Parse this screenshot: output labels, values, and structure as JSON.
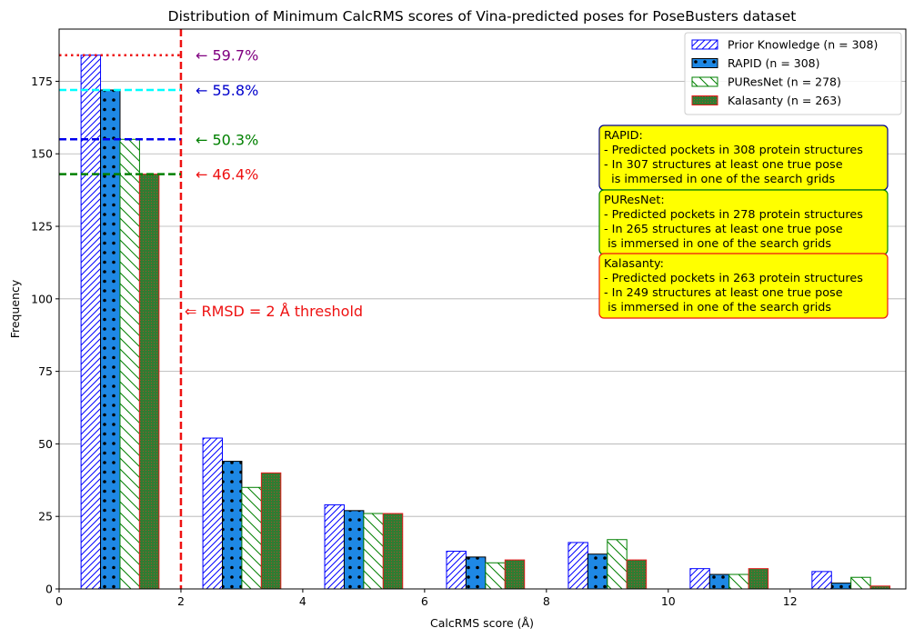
{
  "chart_data": {
    "type": "bar",
    "title": "Distribution of Minimum CalcRMS scores of Vina-predicted poses for PoseBusters dataset",
    "xlabel": "CalcRMS score (Å)",
    "ylabel": "Frequency",
    "xlim": [
      0,
      13.9
    ],
    "ylim": [
      0,
      193
    ],
    "xticks": [
      0,
      2,
      4,
      6,
      8,
      10,
      12
    ],
    "yticks": [
      0,
      25,
      50,
      75,
      100,
      125,
      150,
      175
    ],
    "grid": "horizontal",
    "legend_position": "top-right",
    "bin_centers": [
      1,
      3,
      5,
      7,
      9,
      11,
      13
    ],
    "series": [
      {
        "name": "Prior Knowledge (n = 308)",
        "values": [
          184,
          52,
          29,
          13,
          16,
          7,
          6
        ],
        "edge": "#0000ff",
        "fill": "#ffffff",
        "pattern": "hatch-diag"
      },
      {
        "name": "RAPID (n = 308)",
        "values": [
          172,
          44,
          27,
          11,
          12,
          5,
          2
        ],
        "edge": "#000000",
        "fill": "#1e88e5",
        "pattern": "dots"
      },
      {
        "name": "PUResNet (n = 278)",
        "values": [
          155,
          35,
          26,
          9,
          17,
          5,
          4
        ],
        "edge": "#008000",
        "fill": "#ffffff",
        "pattern": "hatch-back"
      },
      {
        "name": "Kalasanty (n = 263)",
        "values": [
          143,
          40,
          26,
          10,
          10,
          7,
          1
        ],
        "edge": "#e41a1c",
        "fill": "#2e7d32",
        "pattern": "fine-dots"
      }
    ],
    "threshold": {
      "x": 2,
      "color": "#ee1111",
      "label": "⇐ RMSD = 2 Å threshold"
    },
    "reference_lines": [
      {
        "y": 184,
        "color": "#ee1111",
        "style": "dotted",
        "label": "← 59.7%",
        "label_color": "#800080"
      },
      {
        "y": 172,
        "color": "#00ffff",
        "style": "dashed",
        "label": "← 55.8%",
        "label_color": "#0000cc"
      },
      {
        "y": 155,
        "color": "#0000ee",
        "style": "dashed",
        "label": "← 50.3%",
        "label_color": "#008000"
      },
      {
        "y": 143,
        "color": "#008000",
        "style": "dashed",
        "label": "← 46.4%",
        "label_color": "#ee1111"
      }
    ],
    "info_boxes": [
      {
        "lines": [
          "RAPID:",
          "- Predicted pockets in 308 protein structures",
          "- In 307 structures at least one true pose",
          "  is immersed in one of the search grids"
        ],
        "border": "#00008b",
        "background": "#ffff00"
      },
      {
        "lines": [
          "PUResNet:",
          "- Predicted pockets in 278 protein structures",
          "- In 265 structures at least one true pose",
          " is immersed in one of the search grids"
        ],
        "border": "#008000",
        "background": "#ffff00"
      },
      {
        "lines": [
          "Kalasanty:",
          "- Predicted pockets in 263 protein structures",
          "- In 249 structures at least one true pose",
          " is immersed in one of the search grids"
        ],
        "border": "#ee1111",
        "background": "#ffff00"
      }
    ]
  }
}
